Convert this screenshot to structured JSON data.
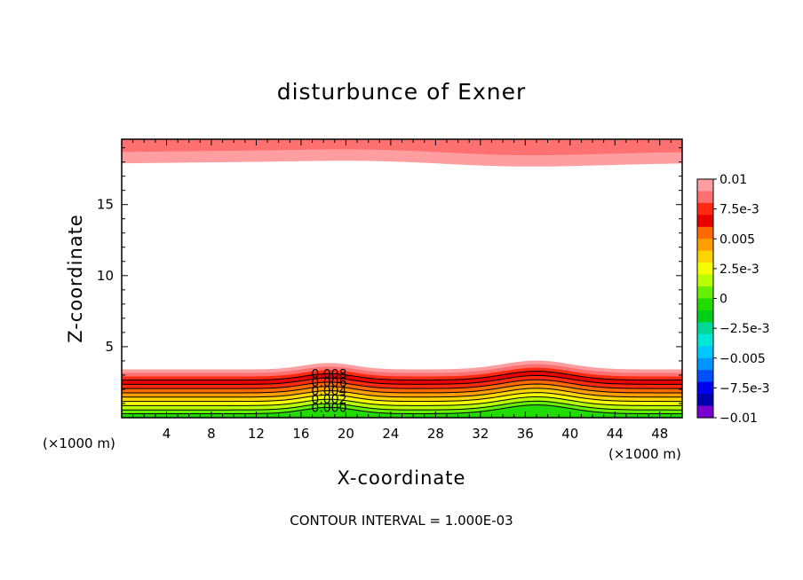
{
  "chart_data": {
    "type": "heatmap",
    "subtype": "filled-contour",
    "title": "disturbunce of Exner",
    "xlabel": "X-coordinate",
    "ylabel": "Z-coordinate",
    "x_unit_left": "(×1000 m)",
    "x_unit_right": "(×1000 m)",
    "footer": "CONTOUR INTERVAL = 1.000E-03",
    "xlim": [
      0,
      50
    ],
    "ylim": [
      0,
      19.6
    ],
    "x_ticks": [
      4,
      8,
      12,
      16,
      20,
      24,
      28,
      32,
      36,
      40,
      44,
      48
    ],
    "y_ticks": [
      5,
      10,
      15
    ],
    "colorbar": {
      "min": -0.01,
      "max": 0.01,
      "tick_values": [
        0.01,
        0.0075,
        0.005,
        0.0025,
        0,
        -0.0025,
        -0.005,
        -0.0075,
        -0.01
      ],
      "tick_labels": [
        "0.01",
        "7.5e-3",
        "0.005",
        "2.5e-3",
        "0",
        "−2.5e-3",
        "−0.005",
        "−7.5e-3",
        "−0.01"
      ],
      "colors_top_to_bottom": [
        "#ff9ea0",
        "#ff7070",
        "#ff2a10",
        "#e80000",
        "#ff6a00",
        "#ff9e00",
        "#ffd400",
        "#f4ff00",
        "#b8ff00",
        "#64f000",
        "#22dc00",
        "#00d018",
        "#00d89a",
        "#00e8d8",
        "#00c8ff",
        "#0096ff",
        "#0050ff",
        "#0000f0",
        "#0000b0",
        "#7a00d0"
      ]
    },
    "contour_labels": [
      "0.008",
      "0.006",
      "0.004",
      "0.002",
      "0.000"
    ],
    "contour_label_x": 18.5,
    "lower_bands": [
      {
        "value": 0.0095,
        "color": "#ff9ea0",
        "base": 3.4
      },
      {
        "value": 0.009,
        "color": "#ff7070",
        "base": 3.15
      },
      {
        "value": 0.0085,
        "color": "#ff2a10",
        "base": 2.9
      },
      {
        "value": 0.008,
        "color": "#e80000",
        "base": 2.65
      },
      {
        "value": 0.007,
        "color": "#ff2a10",
        "base": 2.35
      },
      {
        "value": 0.006,
        "color": "#ff6a00",
        "base": 2.05
      },
      {
        "value": 0.005,
        "color": "#ff9e00",
        "base": 1.75
      },
      {
        "value": 0.004,
        "color": "#ffd400",
        "base": 1.45
      },
      {
        "value": 0.003,
        "color": "#f4ff00",
        "base": 1.15
      },
      {
        "value": 0.002,
        "color": "#b8ff00",
        "base": 0.85
      },
      {
        "value": 0.001,
        "color": "#64f000",
        "base": 0.55
      },
      {
        "value": 0.0,
        "color": "#22dc00",
        "base": 0.28
      }
    ],
    "upper_bands": [
      {
        "value": 0.0095,
        "color": "#ff9ea0",
        "base": 17.9
      },
      {
        "value": 0.009,
        "color": "#ff7070",
        "base": 18.7
      }
    ],
    "ridges": [
      {
        "center": 18.5,
        "width": 3.2,
        "amplitude": 0.45
      },
      {
        "center": 37.0,
        "width": 4.2,
        "amplitude": 0.62
      }
    ]
  }
}
